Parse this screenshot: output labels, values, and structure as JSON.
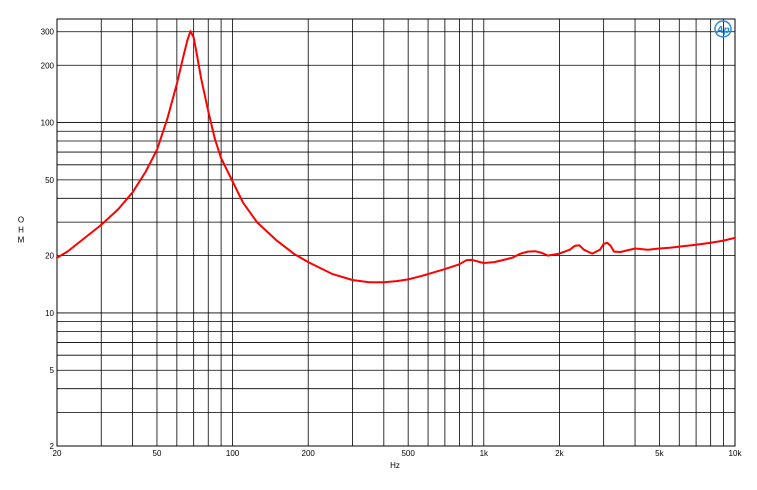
{
  "chart_data": {
    "type": "line",
    "title": "",
    "xlabel": "Hz",
    "ylabel": "OHM",
    "xscale": "log",
    "yscale": "log",
    "xlim": [
      20,
      10000
    ],
    "ylim": [
      2,
      350
    ],
    "grid": true,
    "x_ticks": [
      {
        "v": 20,
        "label": "20"
      },
      {
        "v": 50,
        "label": "50"
      },
      {
        "v": 100,
        "label": "100"
      },
      {
        "v": 200,
        "label": "200"
      },
      {
        "v": 500,
        "label": "500"
      },
      {
        "v": 1000,
        "label": "1k"
      },
      {
        "v": 2000,
        "label": "2k"
      },
      {
        "v": 5000,
        "label": "5k"
      },
      {
        "v": 10000,
        "label": "10k"
      }
    ],
    "y_ticks": [
      {
        "v": 2,
        "label": "2"
      },
      {
        "v": 5,
        "label": "5"
      },
      {
        "v": 10,
        "label": "10"
      },
      {
        "v": 20,
        "label": "20"
      },
      {
        "v": 50,
        "label": "50"
      },
      {
        "v": 100,
        "label": "100"
      },
      {
        "v": 200,
        "label": "200"
      },
      {
        "v": 300,
        "label": "300"
      }
    ],
    "series": [
      {
        "color": "#ff0000",
        "x": [
          20,
          22,
          25,
          30,
          35,
          40,
          45,
          50,
          55,
          60,
          63,
          66,
          68,
          70,
          72,
          75,
          80,
          85,
          90,
          100,
          110,
          125,
          150,
          175,
          200,
          250,
          300,
          350,
          400,
          450,
          500,
          550,
          600,
          700,
          800,
          850,
          900,
          950,
          1000,
          1100,
          1200,
          1300,
          1400,
          1500,
          1600,
          1700,
          1800,
          2000,
          2200,
          2300,
          2400,
          2500,
          2700,
          2900,
          3000,
          3100,
          3200,
          3300,
          3500,
          4000,
          4500,
          5000,
          5500,
          6000,
          7000,
          8000,
          9000,
          10000
        ],
        "y": [
          19.5,
          21,
          24,
          29,
          35,
          43,
          55,
          72,
          105,
          160,
          210,
          270,
          302,
          280,
          230,
          170,
          115,
          82,
          65,
          49,
          38,
          30,
          24,
          20.5,
          18.5,
          16,
          14.9,
          14.5,
          14.5,
          14.7,
          15,
          15.5,
          16,
          17,
          18,
          18.9,
          19,
          18.6,
          18.3,
          18.5,
          19,
          19.5,
          20.5,
          21,
          21.1,
          20.7,
          20,
          20.5,
          21.5,
          22.5,
          22.7,
          21.5,
          20.5,
          21.5,
          23,
          23.4,
          22.5,
          21,
          20.9,
          21.8,
          21.5,
          21.8,
          22,
          22.3,
          22.8,
          23.4,
          24,
          24.8
        ]
      }
    ]
  },
  "logo": {
    "text": "Ap",
    "color": "#2a8ad4"
  }
}
